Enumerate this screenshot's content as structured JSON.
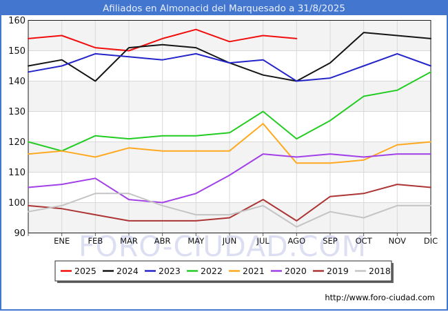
{
  "title": {
    "text": "Afiliados en Almonacid del Marquesado a 31/8/2025"
  },
  "watermark": {
    "text": "FORO-CIUDAD.COM",
    "color": "#dcdef2"
  },
  "footer": {
    "url": "http://www.foro-ciudad.com"
  },
  "colors": {
    "frame_blue": "#4377cf",
    "title_text": "#e8eefc",
    "plot_band_gray": "#f3f3f3",
    "grid_line": "#d9d9d9",
    "plot_border": "#1a1a1a",
    "axis_text": "#111111"
  },
  "chart_data": {
    "type": "line",
    "title": "Afiliados en Almonacid del Marquesado a 31/8/2025",
    "x_categories": [
      "ENE",
      "FEB",
      "MAR",
      "ABR",
      "MAY",
      "JUN",
      "JUL",
      "AGO",
      "SEP",
      "OCT",
      "NOV",
      "DIC"
    ],
    "x_note": "Each series has 13 points: the first sits on the left axis edge, the following 12 align with the month ticks. 2025 data ends at AGO (a 31/8/2025).",
    "y_axis": {
      "min": 90,
      "max": 160,
      "step": 10,
      "tick_labels": [
        "160",
        "150",
        "140",
        "130",
        "120",
        "110",
        "100",
        "90"
      ]
    },
    "legend_position": "bottom",
    "grid": true,
    "series": [
      {
        "name": "2025",
        "color": "#f20d0d",
        "values": [
          154,
          155,
          151,
          150,
          154,
          157,
          153,
          155,
          154,
          null,
          null,
          null,
          null
        ]
      },
      {
        "name": "2024",
        "color": "#141414",
        "values": [
          145,
          147,
          140,
          151,
          152,
          151,
          146,
          142,
          140,
          146,
          156,
          155,
          154
        ]
      },
      {
        "name": "2023",
        "color": "#2424cc",
        "values": [
          143,
          145,
          149,
          148,
          147,
          149,
          146,
          147,
          140,
          141,
          145,
          149,
          145
        ]
      },
      {
        "name": "2022",
        "color": "#21cc21",
        "values": [
          120,
          117,
          122,
          121,
          122,
          122,
          123,
          130,
          121,
          127,
          135,
          137,
          143
        ]
      },
      {
        "name": "2021",
        "color": "#ffa91e",
        "values": [
          116,
          117,
          115,
          118,
          117,
          117,
          117,
          126,
          113,
          113,
          114,
          119,
          120
        ]
      },
      {
        "name": "2020",
        "color": "#a13fe8",
        "values": [
          105,
          106,
          108,
          101,
          100,
          103,
          109,
          116,
          115,
          116,
          115,
          116,
          116
        ]
      },
      {
        "name": "2019",
        "color": "#ac3434",
        "values": [
          99,
          98,
          96,
          94,
          94,
          94,
          95,
          101,
          94,
          102,
          103,
          106,
          105
        ]
      },
      {
        "name": "2018",
        "color": "#c4c4c4",
        "values": [
          97,
          99,
          103,
          103,
          99,
          96,
          96,
          99,
          92,
          97,
          95,
          99,
          99
        ]
      }
    ]
  }
}
